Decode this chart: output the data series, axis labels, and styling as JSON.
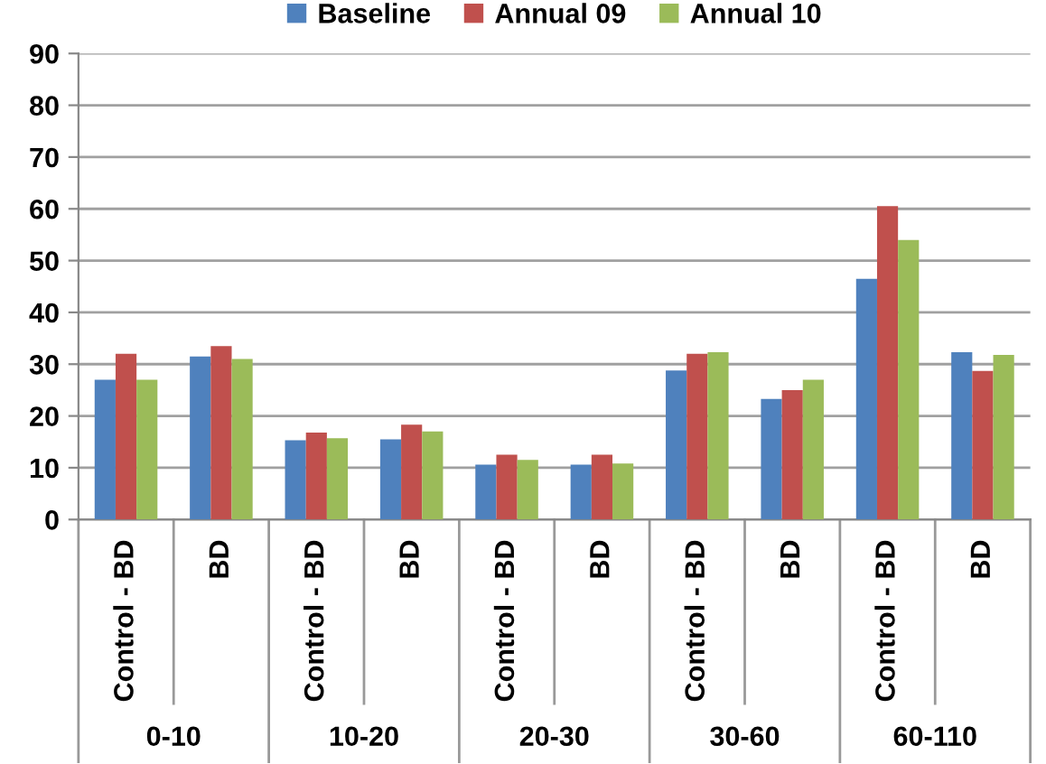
{
  "chart_data": {
    "type": "bar",
    "categories": [
      "Control - BD",
      "BD",
      "Control - BD",
      "BD",
      "Control - BD",
      "BD",
      "Control - BD",
      "BD",
      "Control - BD",
      "BD"
    ],
    "series": [
      {
        "name": "Baseline",
        "color": "#4f81bd",
        "values": [
          27,
          31.5,
          15.3,
          15.5,
          10.6,
          10.6,
          28.8,
          23.3,
          46.5,
          32.3
        ]
      },
      {
        "name": "Annual 09",
        "color": "#c0504d",
        "values": [
          32,
          33.5,
          16.8,
          18.3,
          12.5,
          12.5,
          32,
          25,
          60.5,
          28.7
        ]
      },
      {
        "name": "Annual 10",
        "color": "#9bbb59",
        "values": [
          27,
          31,
          15.7,
          17,
          11.5,
          10.8,
          32.3,
          27,
          54,
          31.8
        ]
      }
    ],
    "annotations": [
      "0-10",
      "10-20",
      "20-30",
      "30-60",
      "60-110"
    ],
    "ylim": [
      0,
      90
    ],
    "yticks": [
      0,
      10,
      20,
      30,
      40,
      50,
      60,
      70,
      80,
      90
    ],
    "grid": "y",
    "legend": "top"
  }
}
